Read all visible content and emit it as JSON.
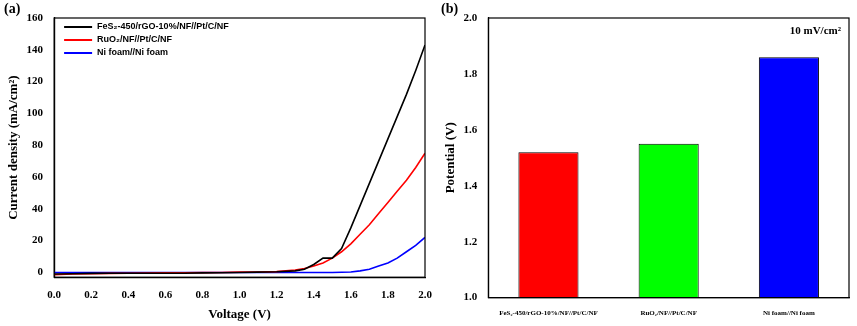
{
  "chart_data": [
    {
      "type": "line",
      "title": "(a)",
      "x_label": "Voltage (V)",
      "y_label": "Current density (mA/cm²)",
      "x": [
        0,
        0.1,
        0.2,
        0.3,
        0.4,
        0.5,
        0.6,
        0.7,
        0.8,
        0.9,
        1.0,
        1.1,
        1.2,
        1.3,
        1.35,
        1.4,
        1.45,
        1.5,
        1.55,
        1.6,
        1.65,
        1.7,
        1.75,
        1.8,
        1.85,
        1.9,
        1.95,
        2.0
      ],
      "series": [
        {
          "name": "FeS₂-450/rGO-10%/NF//Pt/C/NF",
          "color": "#000000",
          "values": [
            -1,
            -0.8,
            -0.6,
            -0.5,
            -0.5,
            -0.5,
            -0.5,
            -0.5,
            -0.3,
            -0.2,
            0,
            0.2,
            0.4,
            1,
            2,
            5,
            9,
            9,
            15,
            28,
            42,
            56,
            70,
            84,
            98,
            112,
            127,
            143
          ]
        },
        {
          "name": "RuO₂/NF//Pt/C/NF",
          "color": "#ff0000",
          "values": [
            -1.5,
            -1,
            -0.8,
            -0.6,
            -0.5,
            -0.4,
            -0.3,
            -0.2,
            -0.1,
            0,
            0.2,
            0.3,
            0.5,
            1.5,
            2.5,
            4,
            6,
            9,
            13,
            18,
            24,
            30,
            37,
            44,
            51,
            58,
            66,
            75
          ]
        },
        {
          "name": "Ni foam//Ni foam",
          "color": "#0000ff",
          "values": [
            0,
            0,
            0,
            0,
            0,
            0,
            0,
            0,
            0,
            0,
            0,
            0,
            0,
            0,
            0,
            0,
            0,
            0,
            0.1,
            0.3,
            1,
            2,
            4,
            6,
            9,
            13,
            17,
            22
          ]
        }
      ],
      "xlim": [
        0,
        2
      ],
      "xticks": [
        {
          "value": 0,
          "label": "0.0"
        },
        {
          "value": 0.2,
          "label": "0.2"
        },
        {
          "value": 0.4,
          "label": "0.4"
        },
        {
          "value": 0.6,
          "label": "0.6"
        },
        {
          "value": 0.8,
          "label": "0.8"
        },
        {
          "value": 1,
          "label": "1.0"
        },
        {
          "value": 1.2,
          "label": "1.2"
        },
        {
          "value": 1.4,
          "label": "1.4"
        },
        {
          "value": 1.6,
          "label": "1.6"
        },
        {
          "value": 1.8,
          "label": "1.8"
        },
        {
          "value": 2,
          "label": "2.0"
        }
      ],
      "ylim": [
        -3,
        160
      ],
      "yticks": [
        0,
        20,
        40,
        60,
        80,
        100,
        120,
        140,
        160
      ],
      "grid": false,
      "legend": "upper left"
    },
    {
      "type": "bar",
      "title": "(b)",
      "y_label": "Potential (V)",
      "annotation": "10 mV/cm²",
      "categories": [
        "FeS₂-450/rGO-10%/NF//Pt/C/NF",
        "RuO₂/NF//Pt/C/NF",
        "Ni foam//Ni foam"
      ],
      "values": [
        1.52,
        1.55,
        1.86
      ],
      "colors": [
        "#ff0000",
        "#00ff00",
        "#0000ff"
      ],
      "ylim": [
        1,
        2
      ],
      "yticks": [
        {
          "value": 1,
          "label": "1.0"
        },
        {
          "value": 1.2,
          "label": "1.2"
        },
        {
          "value": 1.4,
          "label": "1.4"
        },
        {
          "value": 1.6,
          "label": "1.6"
        },
        {
          "value": 1.8,
          "label": "1.8"
        },
        {
          "value": 2,
          "label": "2.0"
        }
      ],
      "grid": false
    }
  ]
}
